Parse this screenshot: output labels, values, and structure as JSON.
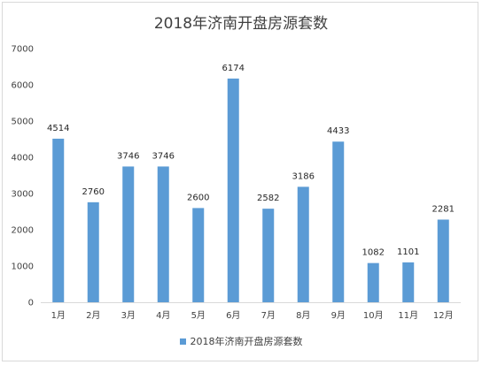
{
  "chart_data": {
    "type": "bar",
    "title": "2018年济南开盘房源套数",
    "categories": [
      "1月",
      "2月",
      "3月",
      "4月",
      "5月",
      "6月",
      "7月",
      "8月",
      "9月",
      "10月",
      "11月",
      "12月"
    ],
    "series": [
      {
        "name": "2018年济南开盘房源套数",
        "values": [
          4514,
          2760,
          3746,
          3746,
          2600,
          6174,
          2582,
          3186,
          4433,
          1082,
          1101,
          2281
        ]
      }
    ],
    "xlabel": "",
    "ylabel": "",
    "ylim": [
      0,
      7000
    ],
    "yticks": [
      "0",
      "1000",
      "2000",
      "3000",
      "4000",
      "5000",
      "6000",
      "7000"
    ],
    "grid": false,
    "legend": "bottom",
    "bar_color": "#5b9bd5"
  }
}
